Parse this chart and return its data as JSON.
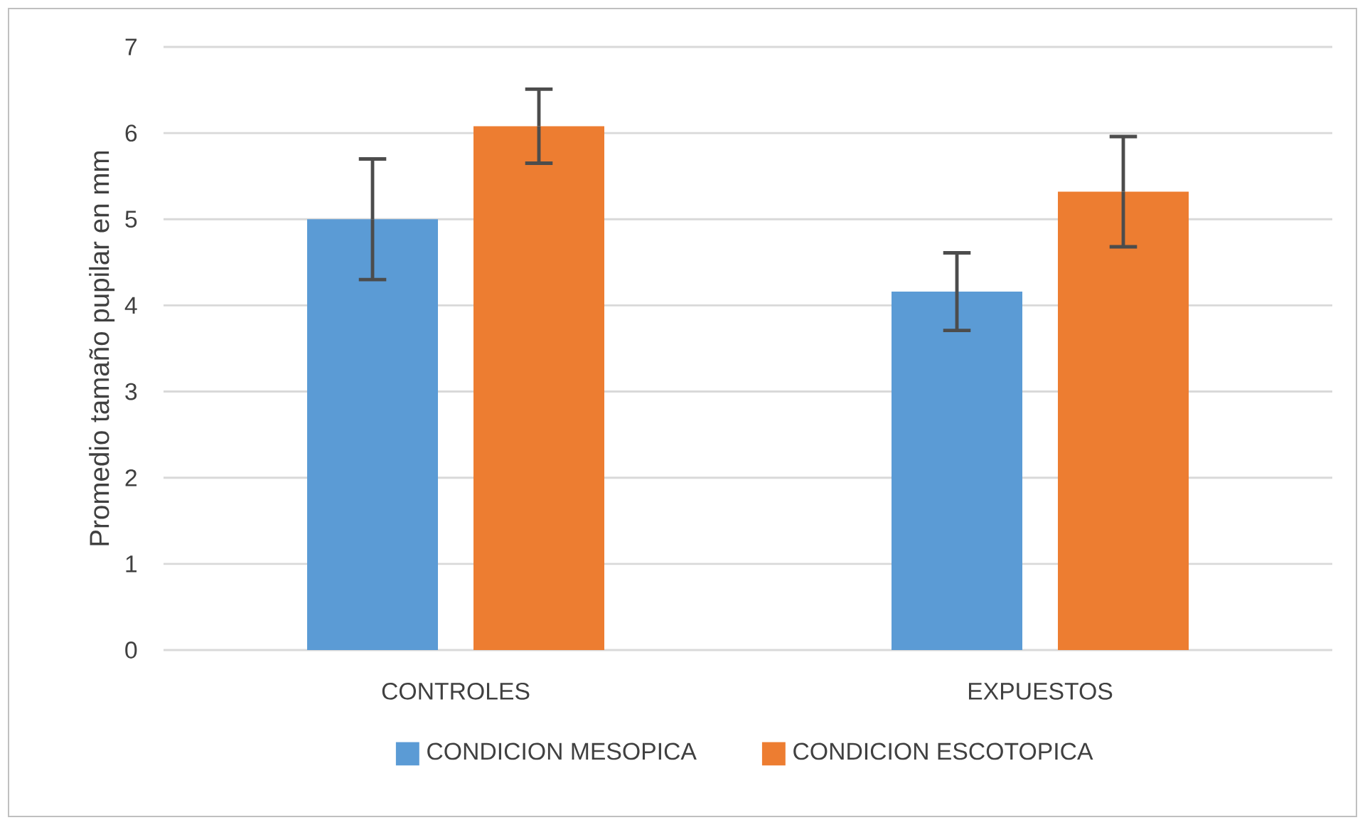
{
  "chart_data": {
    "type": "bar",
    "ylabel": "Promedio tamaño pupilar en mm",
    "categories": [
      "CONTROLES",
      "EXPUESTOS"
    ],
    "series": [
      {
        "name": "CONDICION MESOPICA",
        "color": "#5b9bd5",
        "values": [
          5.0,
          4.16
        ],
        "errors": [
          0.7,
          0.45
        ]
      },
      {
        "name": "CONDICION ESCOTOPICA",
        "color": "#ed7d31",
        "values": [
          6.08,
          5.32
        ],
        "errors": [
          0.43,
          0.64
        ]
      }
    ],
    "ylim": [
      0,
      7
    ],
    "yticks": [
      0,
      1,
      2,
      3,
      4,
      5,
      6,
      7
    ],
    "grid": "y",
    "legend": "bottom"
  }
}
